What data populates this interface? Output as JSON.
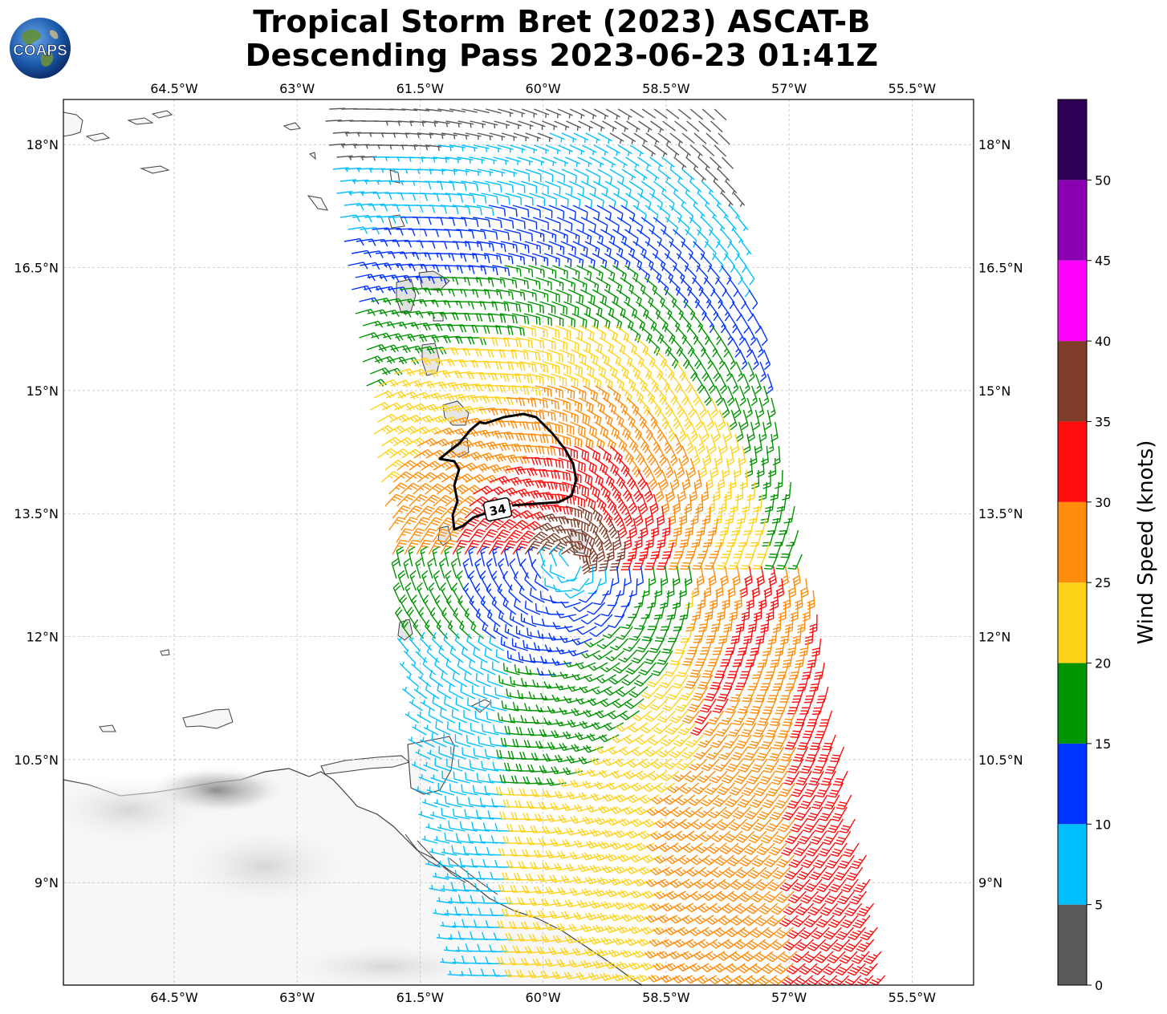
{
  "title": {
    "line1": "Tropical Storm Bret (2023) ASCAT-B",
    "line2": "Descending Pass 2023-06-23 01:41Z"
  },
  "logo": {
    "text": "COAPS",
    "icon": "globe-icon"
  },
  "map": {
    "lon_range": [
      -65.85,
      -54.75
    ],
    "lat_range": [
      7.75,
      18.55
    ],
    "lon_ticks": [
      {
        "value": -64.5,
        "label": "64.5°W"
      },
      {
        "value": -63.0,
        "label": "63°W"
      },
      {
        "value": -61.5,
        "label": "61.5°W"
      },
      {
        "value": -60.0,
        "label": "60°W"
      },
      {
        "value": -58.5,
        "label": "58.5°W"
      },
      {
        "value": -57.0,
        "label": "57°W"
      },
      {
        "value": -55.5,
        "label": "55.5°W"
      }
    ],
    "lat_ticks": [
      {
        "value": 18.0,
        "label": "18°N"
      },
      {
        "value": 16.5,
        "label": "16.5°N"
      },
      {
        "value": 15.0,
        "label": "15°N"
      },
      {
        "value": 13.5,
        "label": "13.5°N"
      },
      {
        "value": 12.0,
        "label": "12°N"
      },
      {
        "value": 10.5,
        "label": "10.5°N"
      },
      {
        "value": 9.0,
        "label": "9°N"
      }
    ],
    "grid": true,
    "storm_center": {
      "lon": -59.6,
      "lat": 12.9
    },
    "contour_label": "34",
    "wind_barbs": "ASCAT-B wind barbs colored by wind speed (knots)"
  },
  "colorbar": {
    "label": "Wind Speed (knots)",
    "ticks": [
      "0",
      "5",
      "10",
      "15",
      "20",
      "25",
      "30",
      "35",
      "40",
      "45",
      "50"
    ],
    "bins": [
      {
        "min": 0,
        "max": 5,
        "color": "#595959"
      },
      {
        "min": 5,
        "max": 10,
        "color": "#00bfff"
      },
      {
        "min": 10,
        "max": 15,
        "color": "#0033ff"
      },
      {
        "min": 15,
        "max": 20,
        "color": "#009400"
      },
      {
        "min": 20,
        "max": 25,
        "color": "#ffd21a"
      },
      {
        "min": 25,
        "max": 30,
        "color": "#ff8c0a"
      },
      {
        "min": 30,
        "max": 35,
        "color": "#ff0d0d"
      },
      {
        "min": 35,
        "max": 40,
        "color": "#7f3d2a"
      },
      {
        "min": 40,
        "max": 45,
        "color": "#ff00ff"
      },
      {
        "min": 45,
        "max": 50,
        "color": "#8b00b3"
      },
      {
        "min": 50,
        "max": 55,
        "color": "#2e0056"
      }
    ]
  }
}
